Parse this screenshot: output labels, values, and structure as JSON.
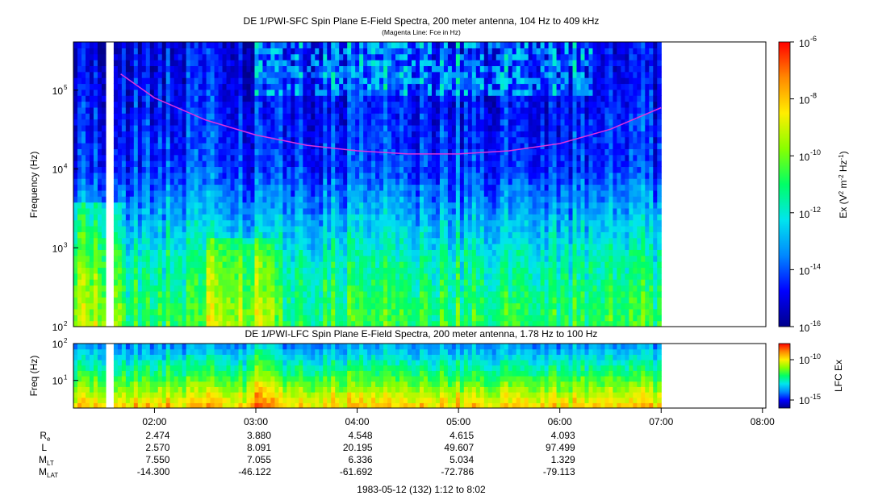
{
  "colors": {
    "magenta_line": "#dd33dd",
    "background": "#ffffff",
    "colorbar": [
      "#00008b",
      "#0000ff",
      "#0088ff",
      "#00e5ee",
      "#00ff66",
      "#88ff00",
      "#ffee00",
      "#ff8800",
      "#ff0000"
    ]
  },
  "chart_data": [
    {
      "type": "heatmap",
      "title": "DE 1/PWI-SFC  Spin Plane E-Field Spectra, 200 meter antenna, 104 Hz to 409 kHz",
      "subtitle": "(Magenta Line: Fce in Hz)",
      "ylabel": "Frequency (Hz)",
      "yscale": "log",
      "ylim": [
        100,
        409000
      ],
      "yticks": [
        {
          "value": 100,
          "label": "10",
          "sup": "2"
        },
        {
          "value": 1000,
          "label": "10",
          "sup": "3"
        },
        {
          "value": 10000,
          "label": "10",
          "sup": "4"
        },
        {
          "value": 100000,
          "label": "10",
          "sup": "5"
        }
      ],
      "xlim": [
        "01:12",
        "08:02"
      ],
      "data_end": "07:00",
      "data_gaps": [
        [
          "01:30",
          "01:36"
        ]
      ],
      "frequency_gap_hz": [
        900,
        1000
      ],
      "colorbar": {
        "label": "Ex (V² m⁻² Hz⁻¹)",
        "label_main": "Ex (V",
        "label_parts": [
          "Ex (V",
          "2",
          " m",
          "-2",
          " Hz",
          "-1",
          ")"
        ],
        "scale": "log",
        "range": [
          1e-16,
          1e-06
        ],
        "ticks": [
          {
            "base": "10",
            "exp": "-6"
          },
          {
            "base": "10",
            "exp": "-8"
          },
          {
            "base": "10",
            "exp": "-10"
          },
          {
            "base": "10",
            "exp": "-12"
          },
          {
            "base": "10",
            "exp": "-14"
          },
          {
            "base": "10",
            "exp": "-16"
          }
        ]
      },
      "fce_line": {
        "name": "Fce",
        "x": [
          "01:40",
          "02:00",
          "02:30",
          "03:00",
          "03:30",
          "04:00",
          "04:30",
          "05:00",
          "05:30",
          "06:00",
          "06:30",
          "07:00"
        ],
        "y": [
          160000,
          80000,
          42000,
          27000,
          20000,
          17000,
          15500,
          15500,
          17000,
          21000,
          32000,
          60000
        ]
      }
    },
    {
      "type": "heatmap",
      "title": "DE 1/PWI-LFC  Spin Plane E-Field Spectra, 200 meter antenna, 1.78 Hz to 100 Hz",
      "ylabel": "Freq (Hz)",
      "yscale": "log",
      "ylim": [
        1.78,
        100
      ],
      "yticks": [
        {
          "value": 10,
          "label": "10",
          "sup": "1"
        },
        {
          "value": 100,
          "label": "10",
          "sup": "2"
        }
      ],
      "xlim": [
        "01:12",
        "08:02"
      ],
      "data_end": "07:00",
      "colorbar": {
        "label": "LFC Ex",
        "scale": "log",
        "range": [
          1e-16,
          1e-08
        ],
        "ticks": [
          {
            "base": "10",
            "exp": "-10"
          },
          {
            "base": "10",
            "exp": "-15"
          }
        ]
      }
    }
  ],
  "x_axis": {
    "ticks": [
      "02:00",
      "03:00",
      "04:00",
      "05:00",
      "06:00",
      "07:00",
      "08:00"
    ],
    "date_label": "1983-05-12 (132) 1:12 to 8:02"
  },
  "ephemeris": {
    "rows": [
      {
        "label": "R",
        "sub": "e",
        "values": [
          "2.474",
          "3.880",
          "4.548",
          "4.615",
          "4.093"
        ]
      },
      {
        "label": "L",
        "sub": "",
        "values": [
          "2.570",
          "8.091",
          "20.195",
          "49.607",
          "97.499"
        ]
      },
      {
        "label": "M",
        "sub": "LT",
        "values": [
          "7.550",
          "7.055",
          "6.336",
          "5.034",
          "1.329"
        ]
      },
      {
        "label": "M",
        "sub": "LAT",
        "values": [
          "-14.300",
          "-46.122",
          "-61.692",
          "-72.786",
          "-79.113"
        ]
      }
    ]
  }
}
